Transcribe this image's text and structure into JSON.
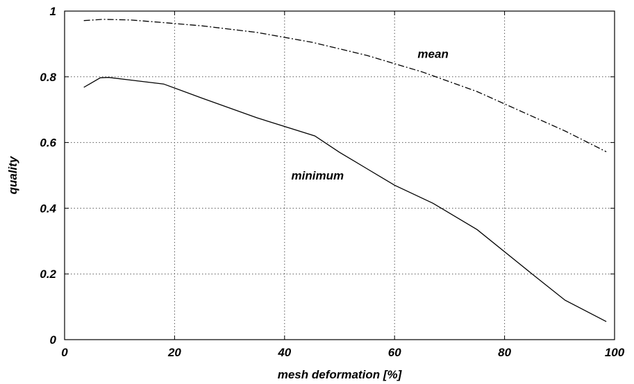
{
  "chart_data": {
    "type": "line",
    "title": "",
    "xlabel": "mesh deformation [%]",
    "ylabel": "quality",
    "xlim": [
      0,
      100
    ],
    "ylim": [
      0,
      1
    ],
    "x_ticks": [
      "0",
      "20",
      "40",
      "60",
      "80",
      "100"
    ],
    "y_ticks": [
      "0",
      "0.2",
      "0.4",
      "0.6",
      "0.8",
      "1"
    ],
    "grid": true,
    "series": [
      {
        "name": "mean",
        "line_style": "dash-dot",
        "x": [
          3.5,
          7,
          12,
          18,
          25,
          35,
          45,
          55,
          65,
          75,
          85,
          91,
          98.5
        ],
        "y": [
          0.971,
          0.975,
          0.973,
          0.965,
          0.955,
          0.935,
          0.905,
          0.865,
          0.815,
          0.755,
          0.68,
          0.635,
          0.572
        ]
      },
      {
        "name": "minimum",
        "line_style": "solid",
        "x": [
          3.5,
          6.5,
          8,
          12,
          18,
          25,
          35,
          45.5,
          50,
          55,
          60,
          67,
          75,
          85,
          91,
          98.5
        ],
        "y": [
          0.768,
          0.797,
          0.798,
          0.79,
          0.778,
          0.735,
          0.675,
          0.62,
          0.57,
          0.52,
          0.47,
          0.415,
          0.335,
          0.2,
          0.12,
          0.055
        ]
      }
    ],
    "annotations": [
      {
        "text": "mean",
        "x": 67,
        "y": 0.87
      },
      {
        "text": "minimum",
        "x": 46,
        "y": 0.5
      }
    ]
  }
}
